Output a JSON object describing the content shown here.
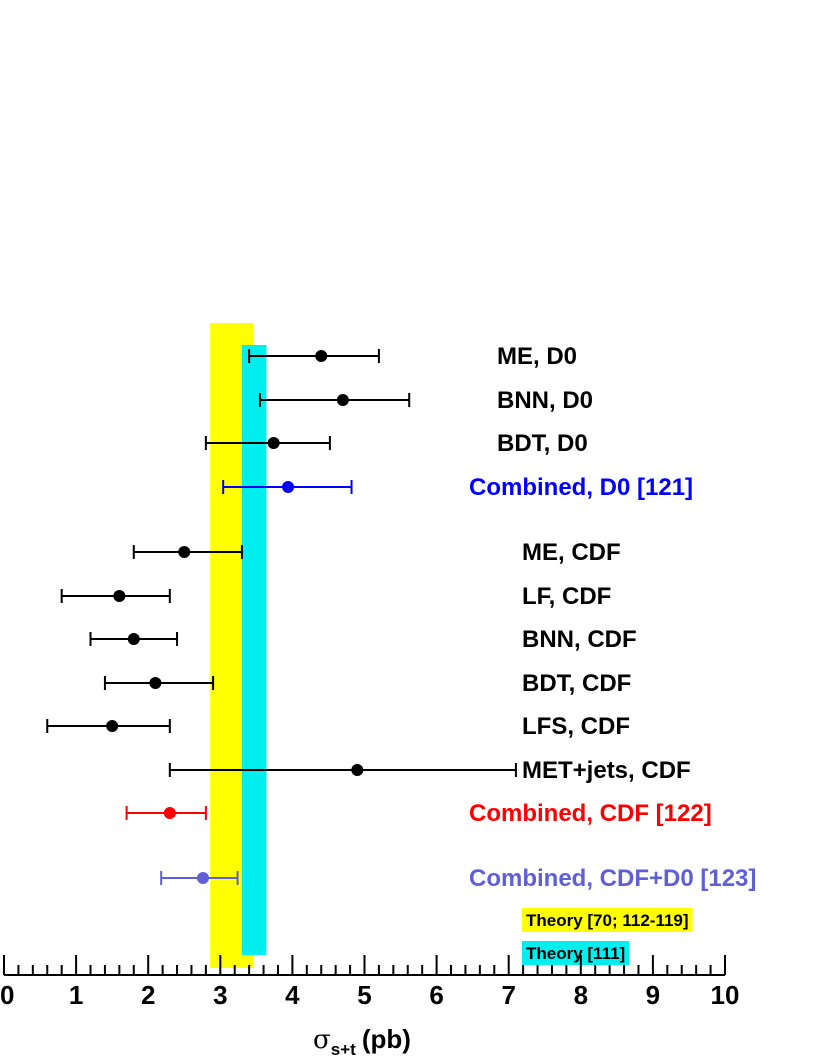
{
  "chart_data": {
    "type": "scatter",
    "xlabel": "σ",
    "xlabel_sub": "s+t",
    "xlabel_unit": "(pb)",
    "xlim": [
      0,
      10
    ],
    "x_ticks": [
      "0",
      "1",
      "2",
      "3",
      "4",
      "5",
      "6",
      "7",
      "8",
      "9",
      "10"
    ],
    "grid": false,
    "measurements": [
      {
        "label": "ME, D0",
        "value": 4.4,
        "err_low": 3.4,
        "err_high": 5.2,
        "color": "#000000"
      },
      {
        "label": "BNN, D0",
        "value": 4.7,
        "err_low": 3.55,
        "err_high": 5.62,
        "color": "#000000"
      },
      {
        "label": "BDT, D0",
        "value": 3.74,
        "err_low": 2.8,
        "err_high": 4.52,
        "color": "#000000"
      },
      {
        "label": "Combined, D0 [121]",
        "value": 3.94,
        "err_low": 3.04,
        "err_high": 4.82,
        "color": "#0000ff"
      },
      {
        "label": "ME, CDF",
        "value": 2.5,
        "err_low": 1.8,
        "err_high": 3.3,
        "color": "#000000"
      },
      {
        "label": "LF, CDF",
        "value": 1.6,
        "err_low": 0.8,
        "err_high": 2.3,
        "color": "#000000"
      },
      {
        "label": "BNN, CDF",
        "value": 1.8,
        "err_low": 1.2,
        "err_high": 2.4,
        "color": "#000000"
      },
      {
        "label": "BDT, CDF",
        "value": 2.1,
        "err_low": 1.4,
        "err_high": 2.9,
        "color": "#000000"
      },
      {
        "label": "LFS, CDF",
        "value": 1.5,
        "err_low": 0.6,
        "err_high": 2.3,
        "color": "#000000"
      },
      {
        "label": "MET+jets, CDF",
        "value": 4.9,
        "err_low": 2.3,
        "err_high": 7.1,
        "color": "#000000"
      },
      {
        "label": "Combined, CDF [122]",
        "value": 2.3,
        "err_low": 1.7,
        "err_high": 2.8,
        "color": "#ff0000"
      },
      {
        "label": "Combined, CDF+D0 [123]",
        "value": 2.76,
        "err_low": 2.18,
        "err_high": 3.24,
        "color": "#5f5fd7"
      }
    ],
    "theory_bands": [
      {
        "label": "Theory [70; 112-119]",
        "low": 2.86,
        "high": 3.46,
        "color": "#ffff00"
      },
      {
        "label": "Theory [111]",
        "low": 3.3,
        "high": 3.64,
        "color": "#00eeee"
      }
    ]
  }
}
